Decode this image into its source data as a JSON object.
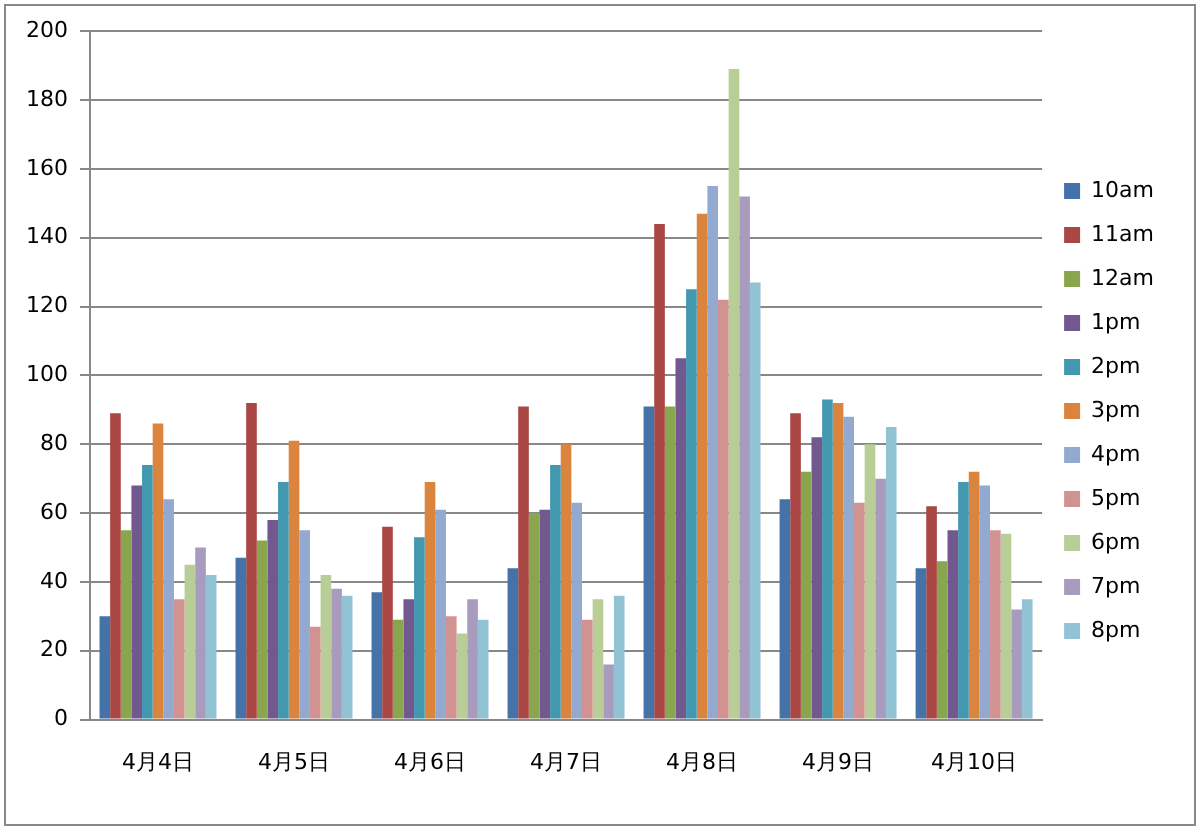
{
  "chart_data": {
    "type": "bar",
    "categories": [
      "4月4日",
      "4月5日",
      "4月6日",
      "4月7日",
      "4月8日",
      "4月9日",
      "4月10日"
    ],
    "series": [
      {
        "name": "10am",
        "color": "#4572a7",
        "values": [
          30,
          47,
          37,
          44,
          91,
          64,
          44
        ]
      },
      {
        "name": "11am",
        "color": "#aa4643",
        "values": [
          89,
          92,
          56,
          91,
          144,
          89,
          62
        ]
      },
      {
        "name": "12am",
        "color": "#89a54e",
        "values": [
          55,
          52,
          29,
          60,
          91,
          72,
          46
        ]
      },
      {
        "name": "1pm",
        "color": "#71588f",
        "values": [
          68,
          58,
          35,
          61,
          105,
          82,
          55
        ]
      },
      {
        "name": "2pm",
        "color": "#4198af",
        "values": [
          74,
          69,
          53,
          74,
          125,
          93,
          69
        ]
      },
      {
        "name": "3pm",
        "color": "#db843d",
        "values": [
          86,
          81,
          69,
          80,
          147,
          92,
          72
        ]
      },
      {
        "name": "4pm",
        "color": "#93a9cf",
        "values": [
          64,
          55,
          61,
          63,
          155,
          88,
          68
        ]
      },
      {
        "name": "5pm",
        "color": "#d19392",
        "values": [
          35,
          27,
          30,
          29,
          122,
          63,
          55
        ]
      },
      {
        "name": "6pm",
        "color": "#b9cd96",
        "values": [
          45,
          42,
          25,
          35,
          189,
          80,
          54
        ]
      },
      {
        "name": "7pm",
        "color": "#a99bbd",
        "values": [
          50,
          38,
          35,
          16,
          152,
          70,
          32
        ]
      },
      {
        "name": "8pm",
        "color": "#92c3d4",
        "values": [
          42,
          36,
          29,
          36,
          127,
          85,
          35
        ]
      }
    ],
    "ylim": [
      0,
      200
    ],
    "yticks": [
      0,
      20,
      40,
      60,
      80,
      100,
      120,
      140,
      160,
      180,
      200
    ],
    "grid": "y",
    "legend": "right"
  }
}
